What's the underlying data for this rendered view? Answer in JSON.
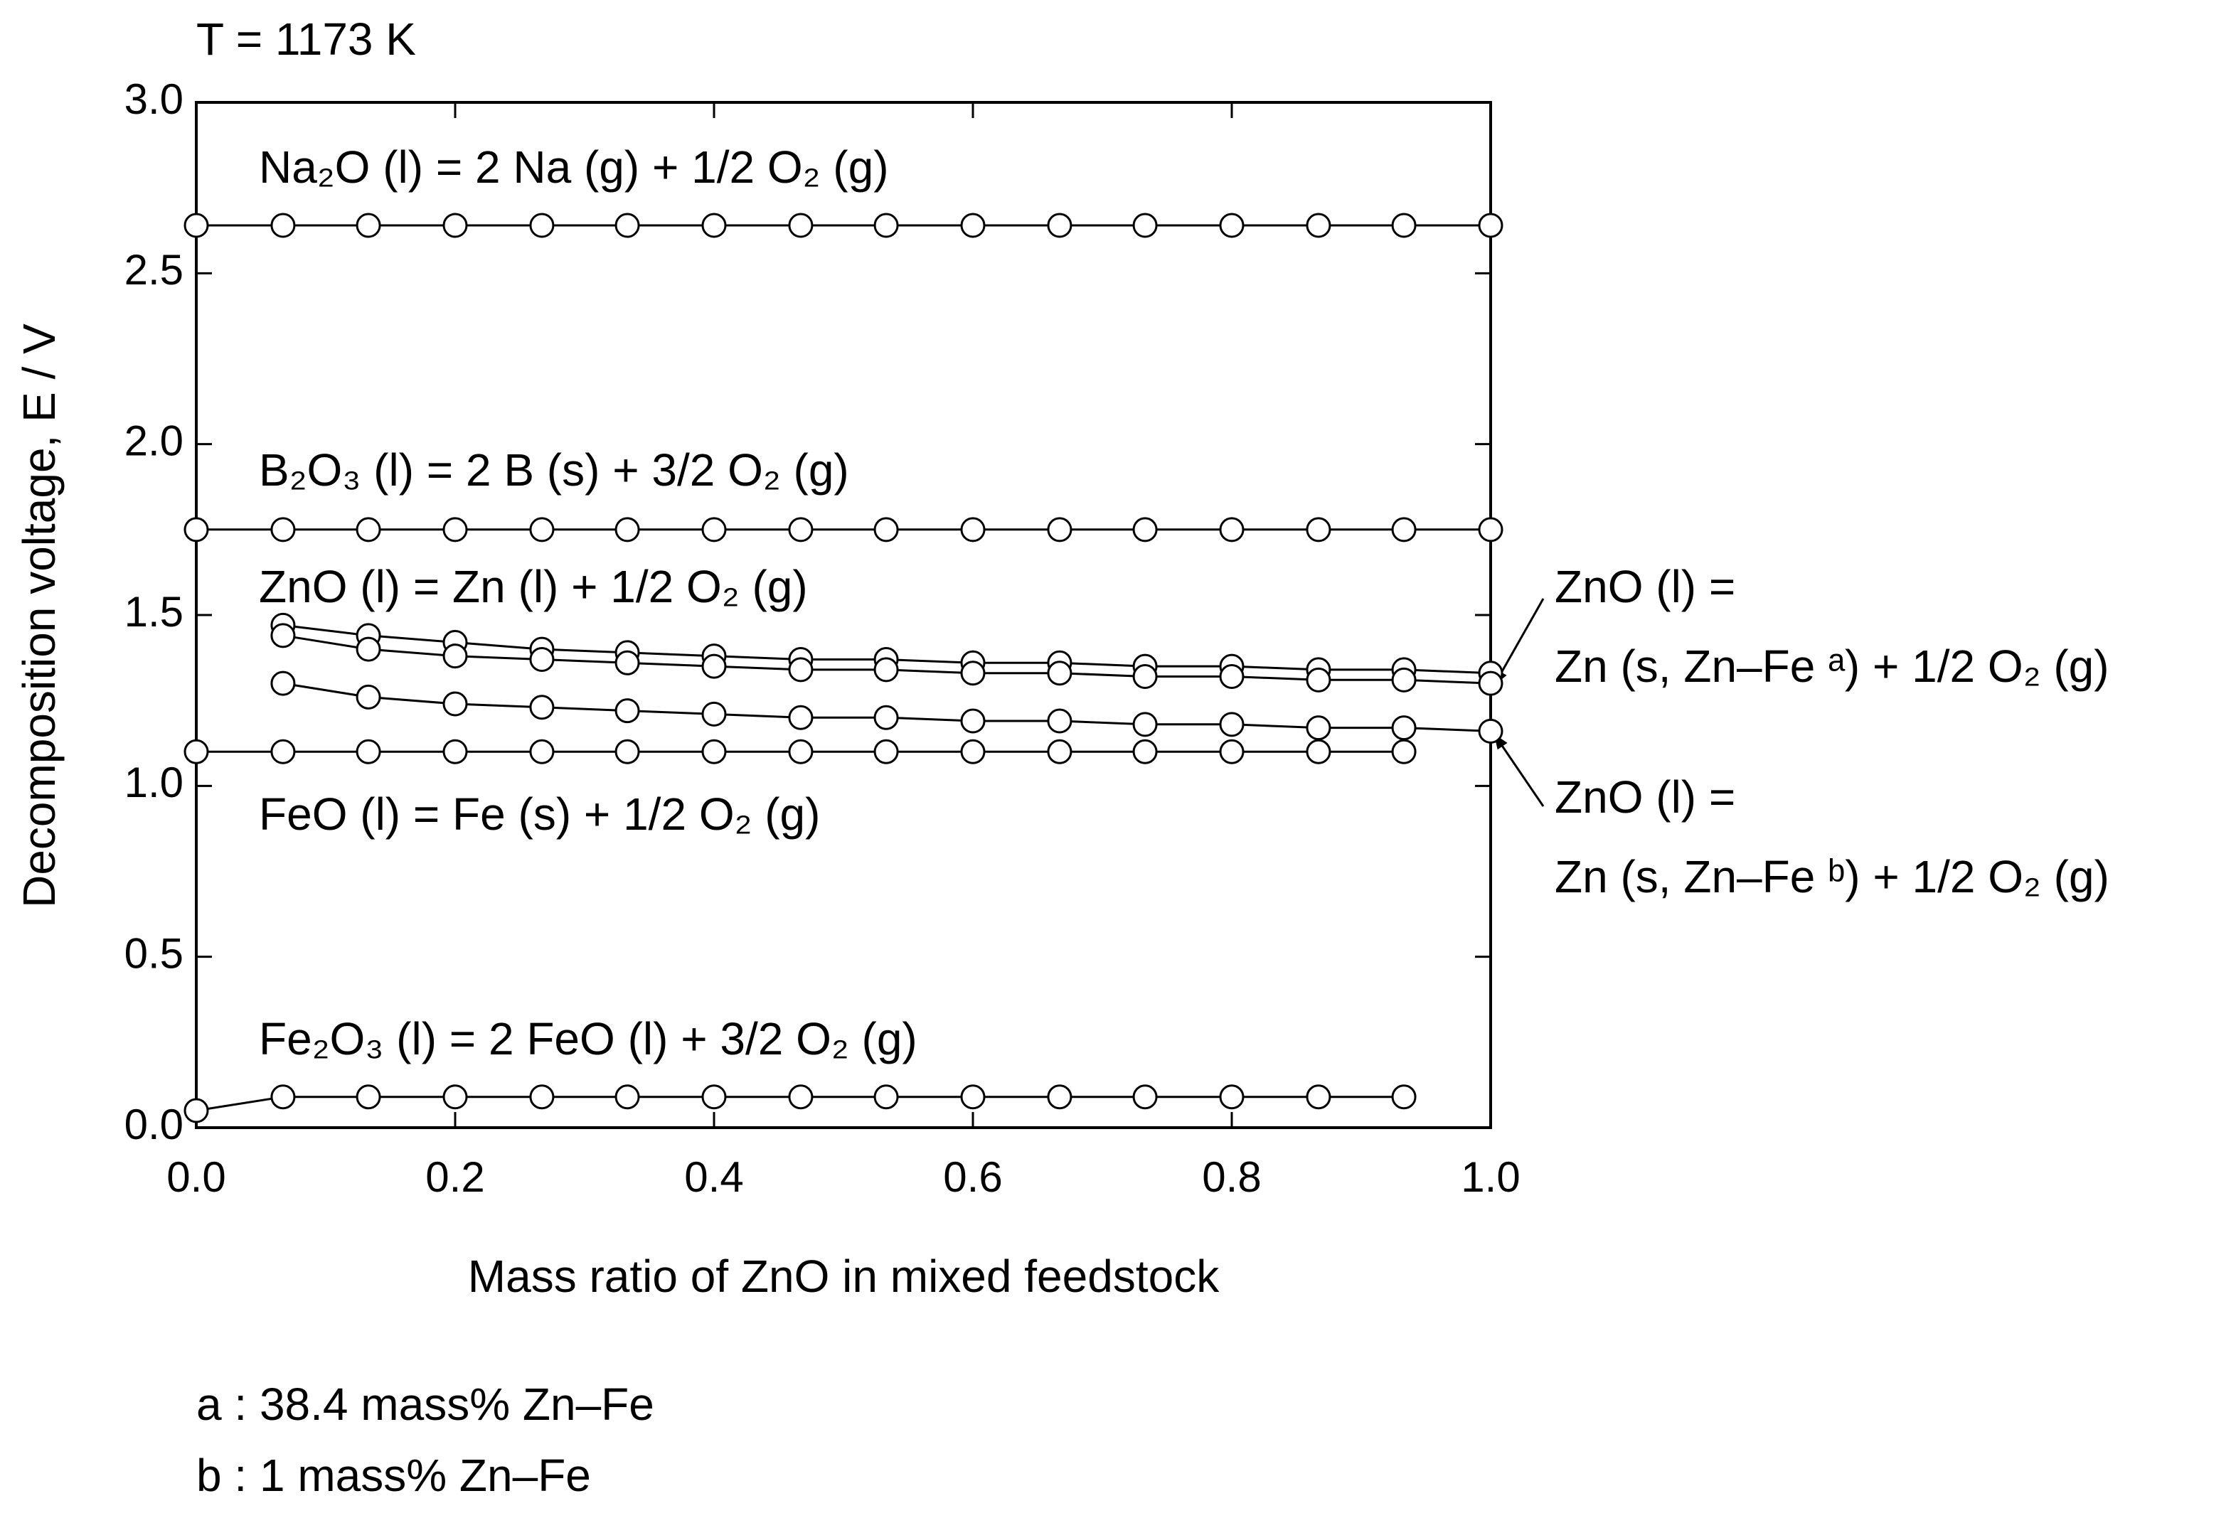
{
  "chart_data": {
    "type": "line",
    "title": "T = 1173 K",
    "x_label": "Mass ratio of ZnO in mixed feedstock",
    "y_label": "Decomposition voltage, E / V",
    "x": [
      0,
      0.067,
      0.133,
      0.2,
      0.267,
      0.333,
      0.4,
      0.467,
      0.533,
      0.6,
      0.667,
      0.733,
      0.8,
      0.867,
      0.933,
      1
    ],
    "xlim": [
      0,
      1
    ],
    "xticks": [
      {
        "value": 0,
        "label": "0.0"
      },
      0.2,
      0.4,
      0.6,
      0.8,
      {
        "value": 1,
        "label": "1.0"
      }
    ],
    "ylim": [
      0,
      3
    ],
    "yticks": [
      {
        "value": 0,
        "label": "0.0"
      },
      0.5,
      {
        "value": 1,
        "label": "1.0"
      },
      1.5,
      {
        "value": 2,
        "label": "2.0"
      },
      2.5,
      {
        "value": 3,
        "label": "3.0"
      }
    ],
    "color": "#000000",
    "marker": "circle",
    "series": [
      {
        "label_lines": [
          "Na₂O (l) = 2 Na (g) + 1/2 O₂ (g)"
        ],
        "values": [
          2.64,
          2.64,
          2.64,
          2.64,
          2.64,
          2.64,
          2.64,
          2.64,
          2.64,
          2.64,
          2.64,
          2.64,
          2.64,
          2.64,
          2.64,
          2.64
        ]
      },
      {
        "label_lines": [
          "B₂O₃ (l) = 2 B (s) + 3/2 O₂ (g)"
        ],
        "values": [
          1.75,
          1.75,
          1.75,
          1.75,
          1.75,
          1.75,
          1.75,
          1.75,
          1.75,
          1.75,
          1.75,
          1.75,
          1.75,
          1.75,
          1.75,
          1.75
        ]
      },
      {
        "label_lines": [
          "ZnO (l) = Zn (l) + 1/2 O₂ (g)"
        ],
        "values": [
          null,
          1.47,
          1.44,
          1.42,
          1.4,
          1.39,
          1.38,
          1.37,
          1.37,
          1.36,
          1.36,
          1.35,
          1.35,
          1.34,
          1.34,
          1.33
        ]
      },
      {
        "label_lines": [
          "ZnO (l) =",
          "Zn (s, Zn–Fe ᵃ) + 1/2 O₂ (g)"
        ],
        "values": [
          null,
          1.44,
          1.4,
          1.38,
          1.37,
          1.36,
          1.35,
          1.34,
          1.34,
          1.33,
          1.33,
          1.32,
          1.32,
          1.31,
          1.31,
          1.3
        ]
      },
      {
        "label_lines": [
          "ZnO (l) =",
          "Zn (s, Zn–Fe ᵇ) + 1/2 O₂ (g)"
        ],
        "values": [
          null,
          1.3,
          1.26,
          1.24,
          1.23,
          1.22,
          1.21,
          1.2,
          1.2,
          1.19,
          1.19,
          1.18,
          1.18,
          1.17,
          1.17,
          1.16
        ]
      },
      {
        "label_lines": [
          "FeO (l) = Fe (s) + 1/2 O₂ (g)"
        ],
        "values": [
          1.1,
          1.1,
          1.1,
          1.1,
          1.1,
          1.1,
          1.1,
          1.1,
          1.1,
          1.1,
          1.1,
          1.1,
          1.1,
          1.1,
          1.1,
          null
        ]
      },
      {
        "label_lines": [
          "Fe₂O₃ (l) = 2 FeO (l) + 3/2 O₂ (g)"
        ],
        "values": [
          0.05,
          0.09,
          0.09,
          0.09,
          0.09,
          0.09,
          0.09,
          0.09,
          0.09,
          0.09,
          0.09,
          0.09,
          0.09,
          0.09,
          0.09,
          null
        ]
      }
    ],
    "footnotes": [
      "a : 38.4 mass% Zn–Fe",
      "b : 1 mass% Zn–Fe"
    ]
  }
}
